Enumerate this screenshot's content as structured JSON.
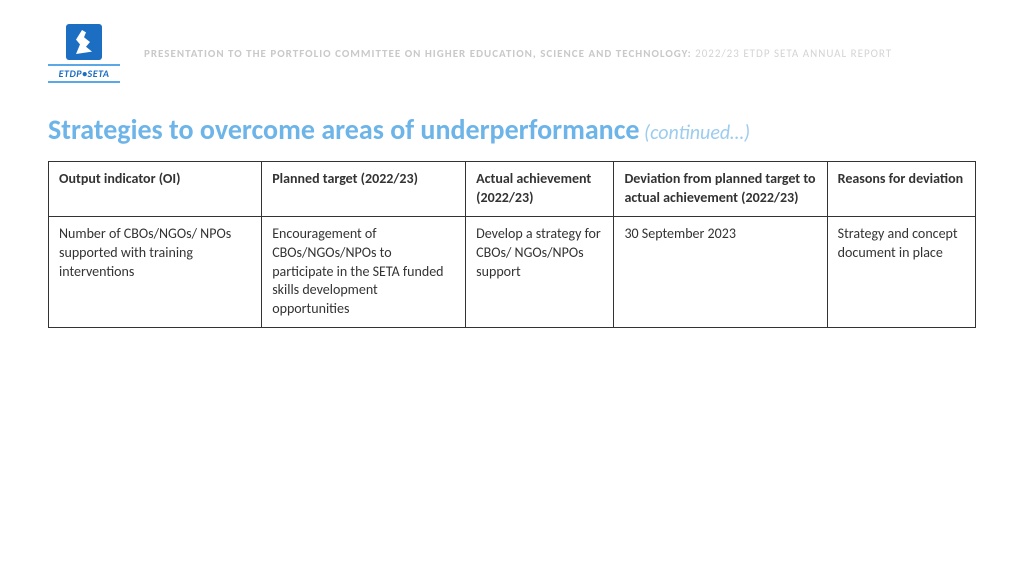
{
  "header": {
    "logo_text": "ETDP•SETA",
    "caption_main": "PRESENTATION TO THE PORTFOLIO COMMITTEE ON HIGHER EDUCATION, SCIENCE AND TECHNOLOGY:",
    "caption_sub": " 2022/23 ETDP SETA ANNUAL REPORT"
  },
  "title": {
    "main": "Strategies to overcome areas of underperformance",
    "cont": " (continued…)"
  },
  "table": {
    "columns": [
      "Output indicator (OI)",
      "Planned target (2022/23)",
      "Actual achievement (2022/23)",
      "Deviation from planned target to actual achievement (2022/23)",
      "Reasons for deviation"
    ],
    "rows": [
      [
        "Number of CBOs/NGOs/ NPOs supported with training interventions",
        "Encouragement of CBOs/NGOs/NPOs to participate in the SETA funded skills development opportunities",
        "Develop a strategy for CBOs/ NGOs/NPOs support",
        "30 September 2023",
        "Strategy and concept document  in place"
      ]
    ],
    "border_color": "#333333",
    "header_fontweight": 700,
    "body_fontsize": 14,
    "col_widths_pct": [
      23,
      22,
      16,
      23,
      16
    ]
  },
  "colors": {
    "title": "#6db4e8",
    "title_cont": "#9cccee",
    "caption": "#c9c9c9",
    "logo_blue": "#1b6ec2",
    "background": "#ffffff"
  }
}
